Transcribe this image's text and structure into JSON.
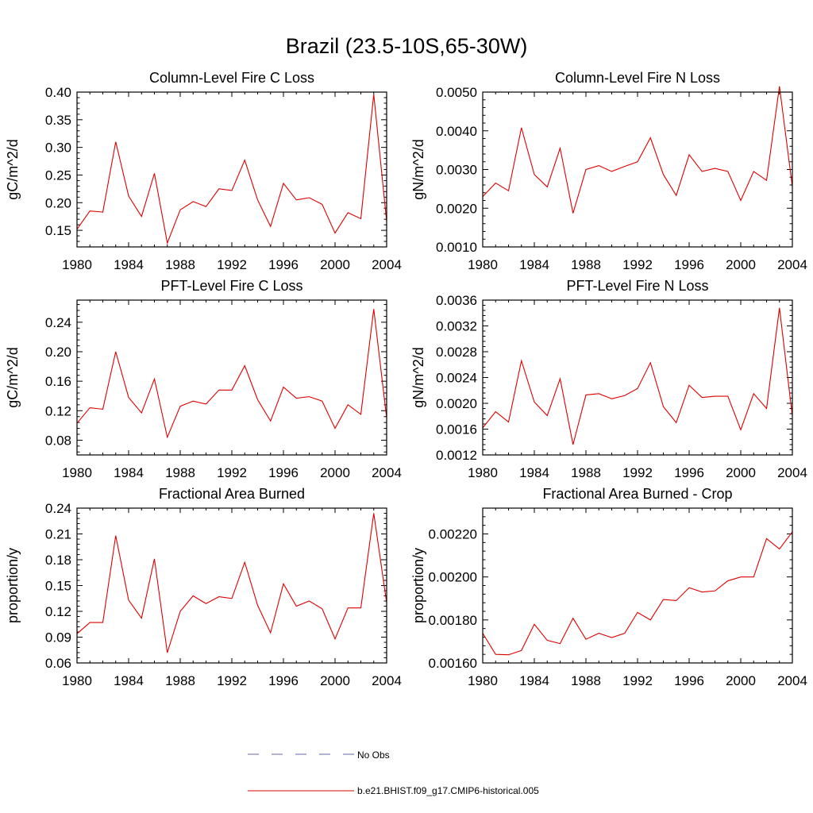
{
  "figure": {
    "title": "Brazil (23.5-10S,65-30W)",
    "colors": {
      "model": "#dd0000",
      "obs": "#6666aa",
      "axis": "#000000"
    }
  },
  "legend": {
    "entries": [
      {
        "label": "No Obs",
        "style": "dashed",
        "color": "#6666aa"
      },
      {
        "label": "b.e21.BHIST.f09_g17.CMIP6-historical.005",
        "style": "solid",
        "color": "#dd0000"
      }
    ]
  },
  "chart_data": [
    {
      "type": "line",
      "title": "Column-Level Fire C Loss",
      "xlabel": "",
      "ylabel": "gC/m^2/d",
      "xlim": [
        1980,
        2004
      ],
      "ylim": [
        0.12,
        0.4
      ],
      "xticks": [
        "1980",
        "1984",
        "1988",
        "1992",
        "1996",
        "2000",
        "2004"
      ],
      "yticks": [
        "0.15",
        "0.20",
        "0.25",
        "0.30",
        "0.35",
        "0.40"
      ],
      "x": [
        1980,
        1981,
        1982,
        1983,
        1984,
        1985,
        1986,
        1987,
        1988,
        1989,
        1990,
        1991,
        1992,
        1993,
        1994,
        1995,
        1996,
        1997,
        1998,
        1999,
        2000,
        2001,
        2002,
        2003,
        2004
      ],
      "series": [
        {
          "name": "b.e21.BHIST.f09_g17.CMIP6-historical.005",
          "values": [
            0.152,
            0.185,
            0.183,
            0.31,
            0.212,
            0.175,
            0.253,
            0.127,
            0.187,
            0.202,
            0.193,
            0.225,
            0.222,
            0.277,
            0.205,
            0.157,
            0.235,
            0.205,
            0.209,
            0.197,
            0.145,
            0.182,
            0.171,
            0.396,
            0.166
          ]
        }
      ]
    },
    {
      "type": "line",
      "title": "Column-Level Fire N Loss",
      "xlabel": "",
      "ylabel": "gN/m^2/d",
      "xlim": [
        1980,
        2004
      ],
      "ylim": [
        0.001,
        0.005
      ],
      "xticks": [
        "1980",
        "1984",
        "1988",
        "1992",
        "1996",
        "2000",
        "2004"
      ],
      "yticks": [
        "0.0010",
        "0.0020",
        "0.0030",
        "0.0040",
        "0.0050"
      ],
      "x": [
        1980,
        1981,
        1982,
        1983,
        1984,
        1985,
        1986,
        1987,
        1988,
        1989,
        1990,
        1991,
        1992,
        1993,
        1994,
        1995,
        1996,
        1997,
        1998,
        1999,
        2000,
        2001,
        2002,
        2003,
        2004
      ],
      "series": [
        {
          "name": "b.e21.BHIST.f09_g17.CMIP6-historical.005",
          "values": [
            0.0023,
            0.00265,
            0.00245,
            0.00408,
            0.00287,
            0.00255,
            0.00355,
            0.00187,
            0.003,
            0.0031,
            0.00295,
            0.00308,
            0.0032,
            0.00382,
            0.00287,
            0.00233,
            0.00338,
            0.00295,
            0.00303,
            0.00295,
            0.0022,
            0.00295,
            0.00272,
            0.00515,
            0.00255
          ]
        }
      ]
    },
    {
      "type": "line",
      "title": "PFT-Level Fire C Loss",
      "xlabel": "",
      "ylabel": "gC/m^2/d",
      "xlim": [
        1980,
        2004
      ],
      "ylim": [
        0.06,
        0.27
      ],
      "xticks": [
        "1980",
        "1984",
        "1988",
        "1992",
        "1996",
        "2000",
        "2004"
      ],
      "yticks": [
        "0.08",
        "0.12",
        "0.16",
        "0.20",
        "0.24"
      ],
      "x": [
        1980,
        1981,
        1982,
        1983,
        1984,
        1985,
        1986,
        1987,
        1988,
        1989,
        1990,
        1991,
        1992,
        1993,
        1994,
        1995,
        1996,
        1997,
        1998,
        1999,
        2000,
        2001,
        2002,
        2003,
        2004
      ],
      "series": [
        {
          "name": "b.e21.BHIST.f09_g17.CMIP6-historical.005",
          "values": [
            0.103,
            0.124,
            0.122,
            0.2,
            0.138,
            0.117,
            0.163,
            0.084,
            0.126,
            0.133,
            0.129,
            0.148,
            0.148,
            0.181,
            0.135,
            0.106,
            0.152,
            0.137,
            0.139,
            0.133,
            0.096,
            0.128,
            0.115,
            0.258,
            0.11
          ]
        }
      ]
    },
    {
      "type": "line",
      "title": "PFT-Level Fire N Loss",
      "xlabel": "",
      "ylabel": "gN/m^2/d",
      "xlim": [
        1980,
        2004
      ],
      "ylim": [
        0.0012,
        0.0036
      ],
      "xticks": [
        "1980",
        "1984",
        "1988",
        "1992",
        "1996",
        "2000",
        "2004"
      ],
      "yticks": [
        "0.0012",
        "0.0016",
        "0.0020",
        "0.0024",
        "0.0028",
        "0.0032",
        "0.0036"
      ],
      "x": [
        1980,
        1981,
        1982,
        1983,
        1984,
        1985,
        1986,
        1987,
        1988,
        1989,
        1990,
        1991,
        1992,
        1993,
        1994,
        1995,
        1996,
        1997,
        1998,
        1999,
        2000,
        2001,
        2002,
        2003,
        2004
      ],
      "series": [
        {
          "name": "b.e21.BHIST.f09_g17.CMIP6-historical.005",
          "values": [
            0.00162,
            0.00187,
            0.00171,
            0.00266,
            0.00202,
            0.00181,
            0.00238,
            0.00136,
            0.00213,
            0.00215,
            0.00207,
            0.00212,
            0.00223,
            0.00263,
            0.00195,
            0.0017,
            0.00228,
            0.00209,
            0.00211,
            0.00211,
            0.00159,
            0.00215,
            0.00192,
            0.00348,
            0.0018
          ]
        }
      ]
    },
    {
      "type": "line",
      "title": "Fractional Area Burned",
      "xlabel": "",
      "ylabel": "proportion/y",
      "xlim": [
        1980,
        2004
      ],
      "ylim": [
        0.06,
        0.24
      ],
      "xticks": [
        "1980",
        "1984",
        "1988",
        "1992",
        "1996",
        "2000",
        "2004"
      ],
      "yticks": [
        "0.06",
        "0.09",
        "0.12",
        "0.15",
        "0.18",
        "0.21",
        "0.24"
      ],
      "x": [
        1980,
        1981,
        1982,
        1983,
        1984,
        1985,
        1986,
        1987,
        1988,
        1989,
        1990,
        1991,
        1992,
        1993,
        1994,
        1995,
        1996,
        1997,
        1998,
        1999,
        2000,
        2001,
        2002,
        2003,
        2004
      ],
      "series": [
        {
          "name": "b.e21.BHIST.f09_g17.CMIP6-historical.005",
          "values": [
            0.094,
            0.107,
            0.107,
            0.208,
            0.133,
            0.112,
            0.181,
            0.072,
            0.12,
            0.138,
            0.129,
            0.137,
            0.135,
            0.177,
            0.127,
            0.095,
            0.152,
            0.126,
            0.132,
            0.123,
            0.088,
            0.124,
            0.124,
            0.234,
            0.13
          ]
        }
      ]
    },
    {
      "type": "line",
      "title": "Fractional Area Burned - Crop",
      "xlabel": "",
      "ylabel": "proportion/y",
      "xlim": [
        1980,
        2004
      ],
      "ylim": [
        0.0016,
        0.00232
      ],
      "xticks": [
        "1980",
        "1984",
        "1988",
        "1992",
        "1996",
        "2000",
        "2004"
      ],
      "yticks": [
        "0.00160",
        "0.00180",
        "0.00200",
        "0.00220"
      ],
      "x": [
        1980,
        1981,
        1982,
        1983,
        1984,
        1985,
        1986,
        1987,
        1988,
        1989,
        1990,
        1991,
        1992,
        1993,
        1994,
        1995,
        1996,
        1997,
        1998,
        1999,
        2000,
        2001,
        2002,
        2003,
        2004
      ],
      "series": [
        {
          "name": "b.e21.BHIST.f09_g17.CMIP6-historical.005",
          "values": [
            0.001738,
            0.00164,
            0.001638,
            0.001658,
            0.00178,
            0.001705,
            0.00169,
            0.001808,
            0.00171,
            0.001738,
            0.001718,
            0.001738,
            0.001835,
            0.0018,
            0.001895,
            0.00189,
            0.00195,
            0.00193,
            0.001935,
            0.001982,
            0.002,
            0.002,
            0.002178,
            0.00213,
            0.00221
          ]
        }
      ]
    }
  ]
}
